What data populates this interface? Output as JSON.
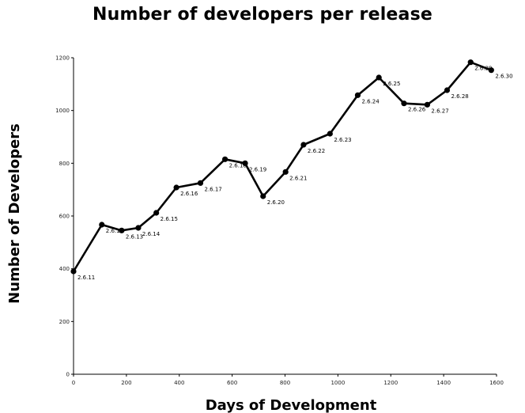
{
  "chart_data": {
    "type": "line",
    "title": "Number of developers per release",
    "xlabel": "Days of Development",
    "ylabel": "Number of Developers",
    "xlim": [
      0,
      1600
    ],
    "ylim": [
      0,
      1200
    ],
    "x_ticks": [
      0,
      200,
      400,
      600,
      800,
      1000,
      1200,
      1400,
      1600
    ],
    "y_ticks": [
      0,
      200,
      400,
      600,
      800,
      1000,
      1200
    ],
    "grid": false,
    "legend": "none",
    "series": [
      {
        "color": "#000000",
        "points": [
          {
            "x": 0,
            "y": 390,
            "label": "2.6.11"
          },
          {
            "x": 107,
            "y": 567,
            "label": "2.6.12"
          },
          {
            "x": 182,
            "y": 545,
            "label": "2.6.13"
          },
          {
            "x": 245,
            "y": 555,
            "label": "2.6.14"
          },
          {
            "x": 313,
            "y": 612,
            "label": "2.6.15"
          },
          {
            "x": 389,
            "y": 708,
            "label": "2.6.16"
          },
          {
            "x": 480,
            "y": 725,
            "label": "2.6.17"
          },
          {
            "x": 573,
            "y": 815,
            "label": "2.6.18"
          },
          {
            "x": 649,
            "y": 800,
            "label": "2.6.19"
          },
          {
            "x": 717,
            "y": 675,
            "label": "2.6.20"
          },
          {
            "x": 802,
            "y": 767,
            "label": "2.6.21"
          },
          {
            "x": 870,
            "y": 870,
            "label": "2.6.22"
          },
          {
            "x": 970,
            "y": 912,
            "label": "2.6.23"
          },
          {
            "x": 1075,
            "y": 1058,
            "label": "2.6.24"
          },
          {
            "x": 1155,
            "y": 1125,
            "label": "2.6.25"
          },
          {
            "x": 1250,
            "y": 1027,
            "label": "2.6.26"
          },
          {
            "x": 1338,
            "y": 1022,
            "label": "2.6.27"
          },
          {
            "x": 1413,
            "y": 1077,
            "label": "2.6.28"
          },
          {
            "x": 1502,
            "y": 1183,
            "label": "2.6.29"
          },
          {
            "x": 1580,
            "y": 1153,
            "label": "2.6.30"
          }
        ]
      }
    ]
  }
}
